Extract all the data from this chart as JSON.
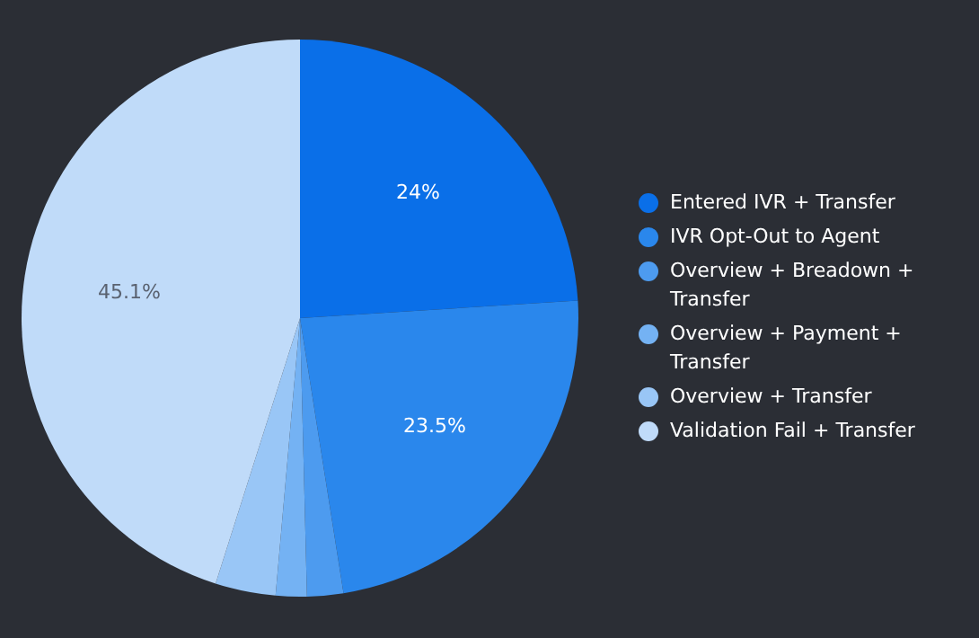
{
  "chart_data": {
    "type": "pie",
    "categories": [
      "Entered IVR + Transfer",
      "IVR Opt-Out to Agent",
      "Overview + Breadown + Transfer",
      "Overview + Payment + Transfer",
      "Overview + Transfer",
      "Validation Fail + Transfer"
    ],
    "values": [
      24,
      23.5,
      2.1,
      1.8,
      3.5,
      45.1
    ],
    "value_labels": [
      "24%",
      "23.5%",
      null,
      null,
      null,
      "45.1%"
    ],
    "colors": [
      "#0a6fe8",
      "#2a87ec",
      "#4d9bef",
      "#74b2f3",
      "#99c6f6",
      "#c0dbf9"
    ],
    "legend": "right"
  }
}
